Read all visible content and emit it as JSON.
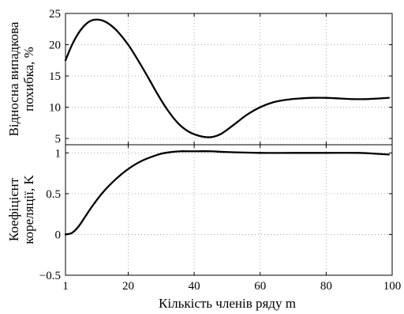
{
  "chart_data": [
    {
      "type": "line",
      "ylabel": [
        "Відносна випадкова",
        "похибка, %"
      ],
      "xlim": [
        1,
        100
      ],
      "ylim": [
        4,
        25
      ],
      "xticks": [
        1,
        20,
        40,
        60,
        80,
        100
      ],
      "yticks": [
        5,
        10,
        15,
        20,
        25
      ],
      "grid": true,
      "series": [
        {
          "x": [
            1,
            3,
            5,
            7,
            9,
            11,
            13,
            15,
            17,
            20,
            23,
            26,
            29,
            32,
            35,
            38,
            41,
            44,
            46,
            48,
            50,
            53,
            56,
            60,
            64,
            68,
            72,
            76,
            80,
            84,
            88,
            92,
            96,
            99
          ],
          "values": [
            17.5,
            20.0,
            21.9,
            23.2,
            23.9,
            24.0,
            23.7,
            23.0,
            22.0,
            20.0,
            17.5,
            14.8,
            12.0,
            9.5,
            7.5,
            6.2,
            5.5,
            5.2,
            5.3,
            5.7,
            6.4,
            7.6,
            8.8,
            10.0,
            10.8,
            11.2,
            11.4,
            11.5,
            11.5,
            11.4,
            11.3,
            11.3,
            11.4,
            11.5
          ]
        }
      ]
    },
    {
      "type": "line",
      "ylabel": [
        "Коефіцієнт",
        "кореляції, K"
      ],
      "xlabel": "Кількість членів ряду m",
      "xlim": [
        1,
        100
      ],
      "ylim": [
        -0.5,
        1.1
      ],
      "xticks": [
        1,
        20,
        40,
        60,
        80,
        100
      ],
      "yticks": [
        -0.5,
        0,
        0.5,
        1
      ],
      "ytick_labels": [
        "−0.5",
        "0",
        "0.5",
        "1"
      ],
      "grid": true,
      "series": [
        {
          "x": [
            1,
            3,
            5,
            7,
            9,
            12,
            15,
            18,
            21,
            24,
            27,
            30,
            33,
            36,
            38,
            40,
            45,
            50,
            60,
            70,
            80,
            90,
            95,
            99
          ],
          "values": [
            0.0,
            0.02,
            0.1,
            0.22,
            0.34,
            0.5,
            0.63,
            0.74,
            0.83,
            0.9,
            0.95,
            0.99,
            1.01,
            1.02,
            1.02,
            1.02,
            1.02,
            1.01,
            1.0,
            1.0,
            1.0,
            1.0,
            0.99,
            0.98
          ]
        }
      ]
    }
  ]
}
